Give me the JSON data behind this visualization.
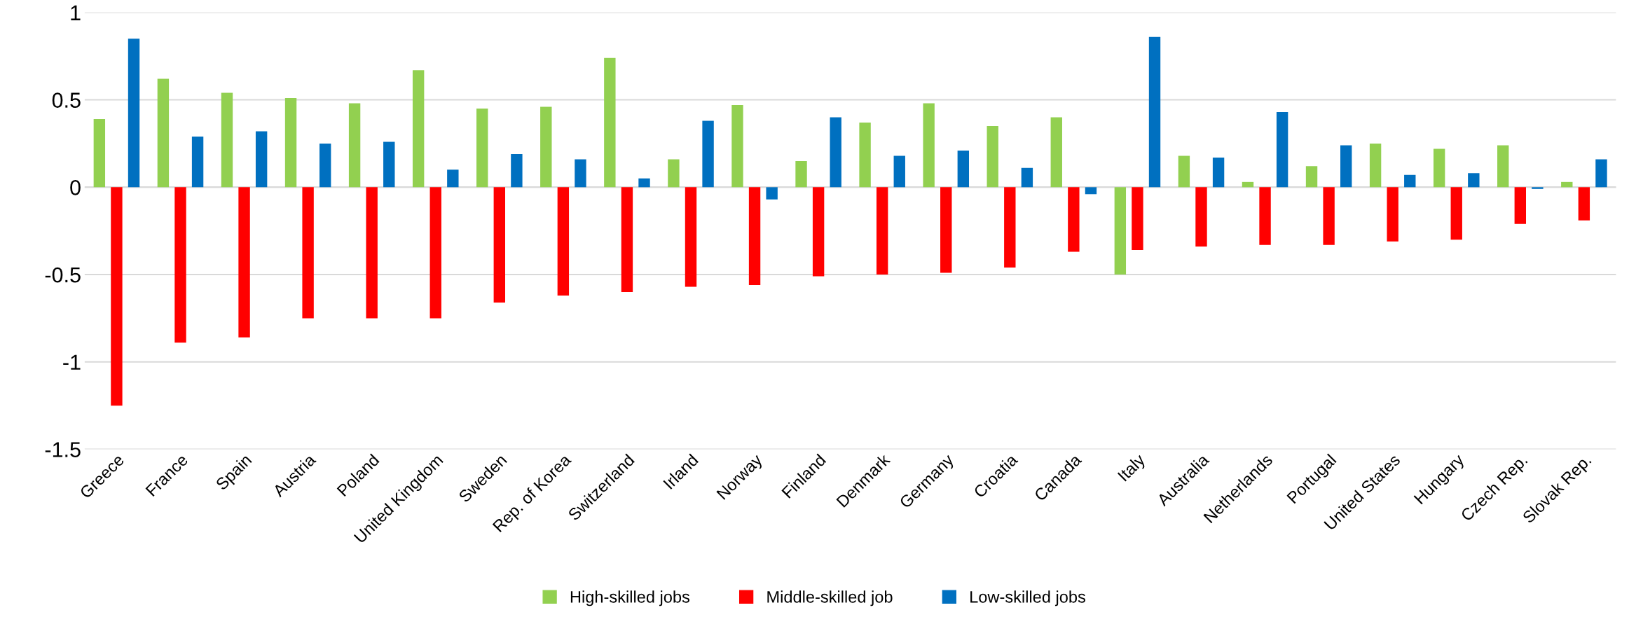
{
  "chart_data": {
    "type": "bar",
    "categories": [
      "Greece",
      "France",
      "Spain",
      "Austria",
      "Poland",
      "United Kingdom",
      "Sweden",
      "Rep. of Korea",
      "Switzerland",
      "Irland",
      "Norway",
      "Finland",
      "Denmark",
      "Germany",
      "Croatia",
      "Canada",
      "Italy",
      "Australia",
      "Netherlands",
      "Portugal",
      "United States",
      "Hungary",
      "Czech Rep.",
      "Slovak Rep."
    ],
    "series": [
      {
        "name": "High-skilled jobs",
        "color": "#92d050",
        "values": [
          0.39,
          0.62,
          0.54,
          0.51,
          0.48,
          0.67,
          0.45,
          0.46,
          0.74,
          0.16,
          0.47,
          0.15,
          0.37,
          0.48,
          0.35,
          0.4,
          -0.5,
          0.18,
          0.03,
          0.12,
          0.25,
          0.22,
          0.24,
          0.03
        ]
      },
      {
        "name": "Middle-skilled job",
        "color": "#ff0000",
        "values": [
          -1.25,
          -0.89,
          -0.86,
          -0.75,
          -0.75,
          -0.75,
          -0.66,
          -0.62,
          -0.6,
          -0.57,
          -0.56,
          -0.51,
          -0.5,
          -0.49,
          -0.46,
          -0.37,
          -0.36,
          -0.34,
          -0.33,
          -0.33,
          -0.31,
          -0.3,
          -0.21,
          -0.19
        ]
      },
      {
        "name": "Low-skilled jobs",
        "color": "#0070c0",
        "values": [
          0.85,
          0.29,
          0.32,
          0.25,
          0.26,
          0.1,
          0.19,
          0.16,
          0.05,
          0.38,
          -0.07,
          0.4,
          0.18,
          0.21,
          0.11,
          -0.04,
          0.86,
          0.17,
          0.43,
          0.24,
          0.07,
          0.08,
          -0.01,
          0.16
        ]
      }
    ],
    "ylim": [
      -1.5,
      1
    ],
    "yticks": [
      -1.5,
      -1,
      -0.5,
      0,
      0.5,
      1
    ],
    "grid": "y",
    "legend": "bottom"
  }
}
